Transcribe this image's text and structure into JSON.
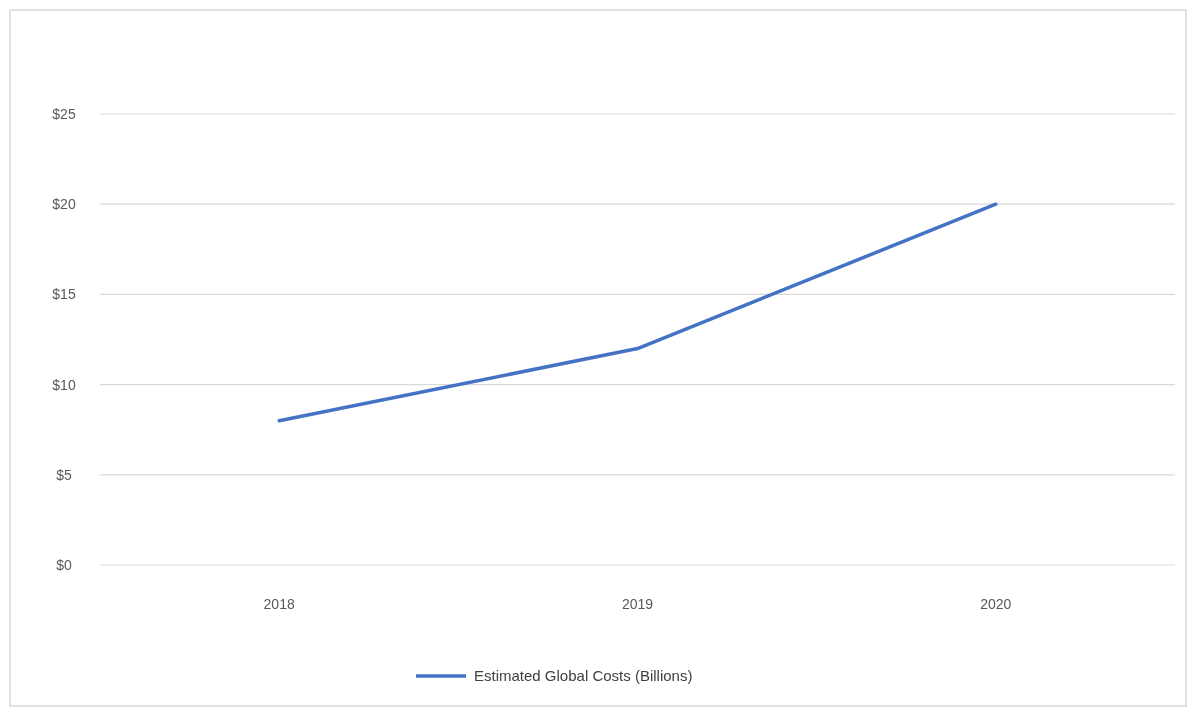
{
  "chart_data": {
    "type": "line",
    "categories": [
      "2018",
      "2019",
      "2020"
    ],
    "series": [
      {
        "name": "Estimated Global Costs (Billions)",
        "color": "#4472c4",
        "values": [
          8,
          12,
          20
        ]
      }
    ],
    "ylim": [
      0,
      25
    ],
    "yticks": [
      {
        "value": 0,
        "label": "$0"
      },
      {
        "value": 5,
        "label": "$5"
      },
      {
        "value": 10,
        "label": "$10"
      },
      {
        "value": 15,
        "label": "$15"
      },
      {
        "value": 20,
        "label": "$20"
      },
      {
        "value": 25,
        "label": "$25"
      }
    ],
    "grid": "y",
    "legend": "bottom",
    "marker": "none",
    "line_style": "solid"
  }
}
